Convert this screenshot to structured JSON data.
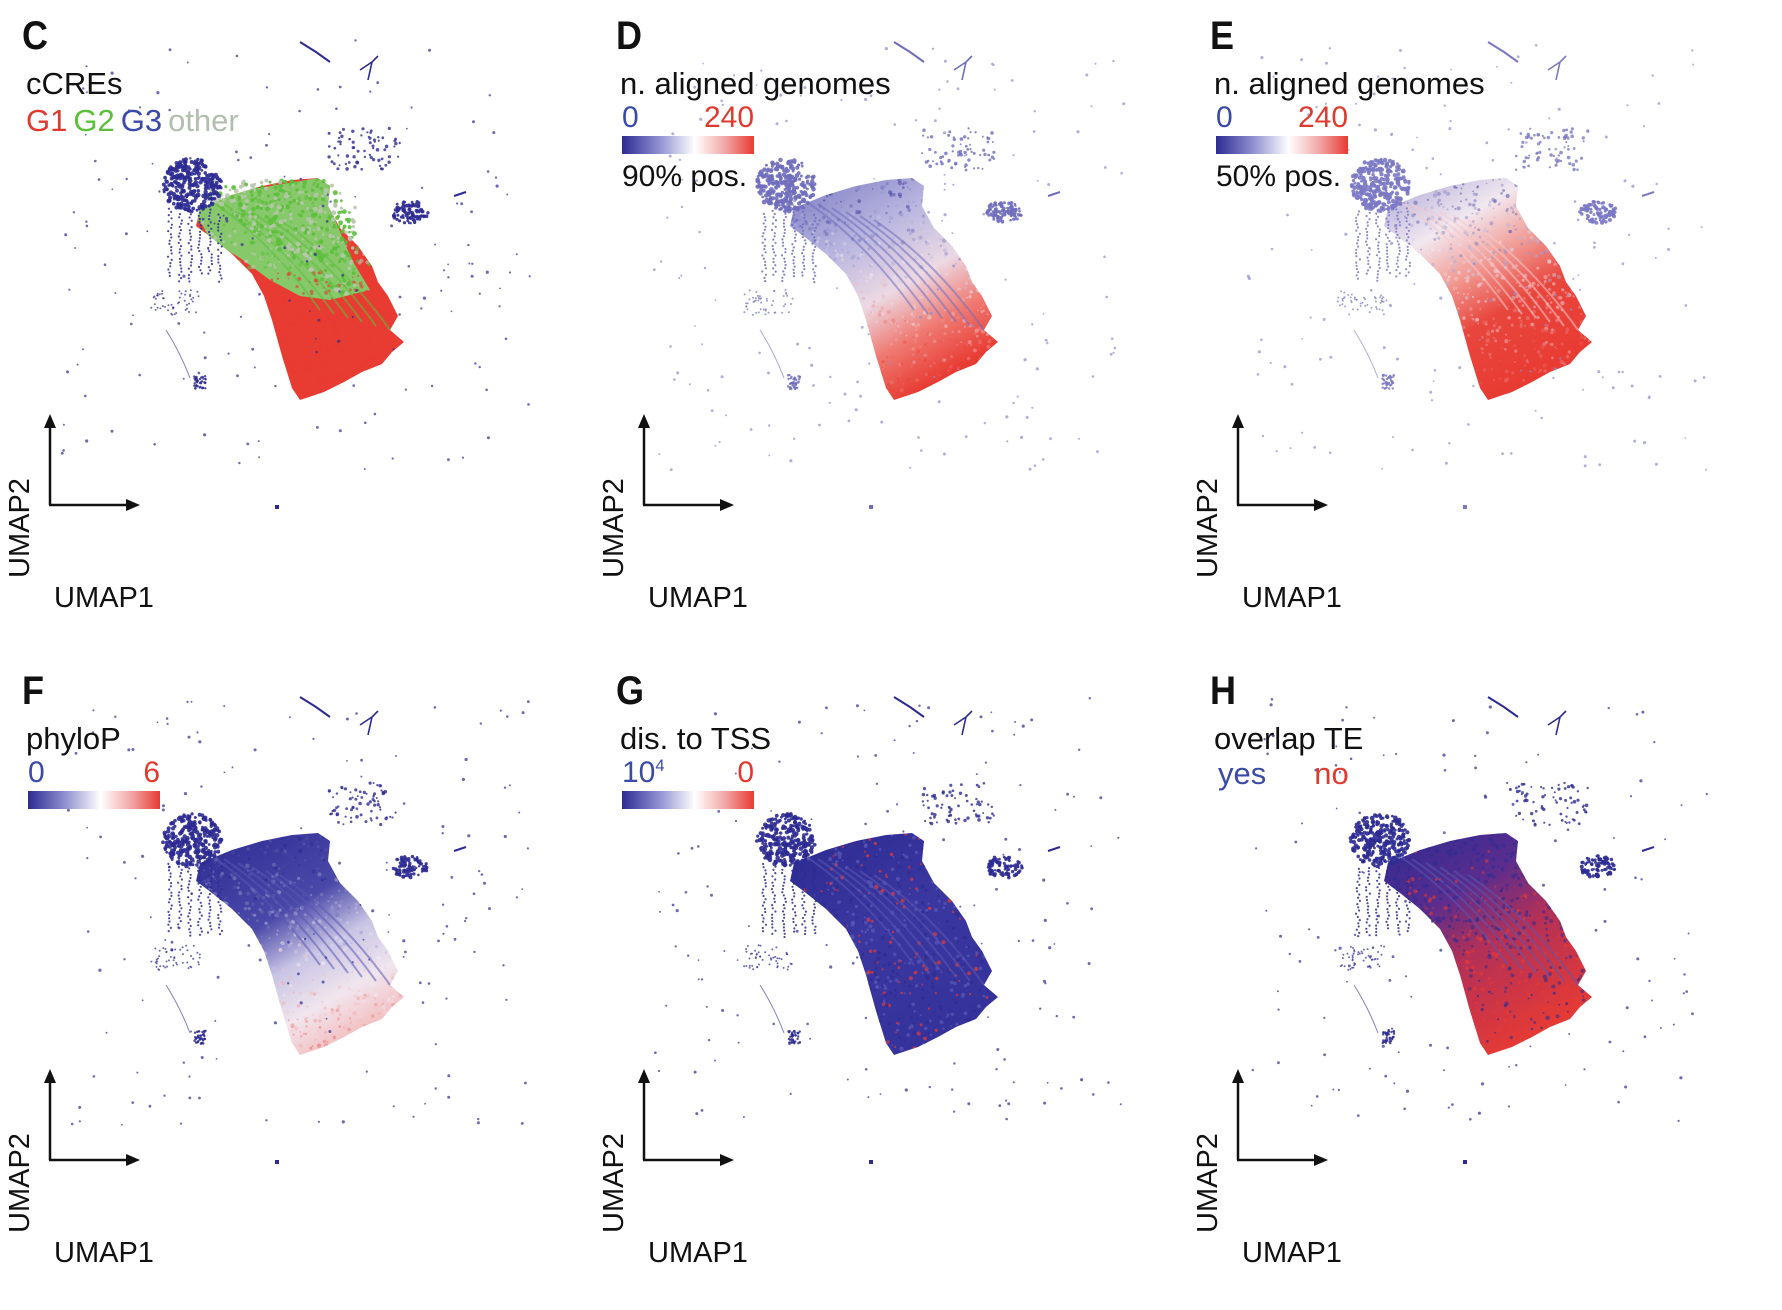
{
  "colors": {
    "blue": "#2d2b92",
    "red": "#e83b32",
    "green": "#5cbf3a",
    "gray": "#b8c2b0",
    "label_blue": "#3b4aa8",
    "label_red": "#e03a2f"
  },
  "chart_data": [
    {
      "type": "scatter",
      "panel": "C",
      "title": "cCREs",
      "legend": [
        "G1",
        "G2",
        "G3",
        "other"
      ],
      "legend_colors": [
        "#e83b32",
        "#5cbf3a",
        "#3b4aa8",
        "#b8c2b0"
      ],
      "xlabel": "UMAP1",
      "ylabel": "UMAP2",
      "coloring": "categorical"
    },
    {
      "type": "scatter",
      "panel": "D",
      "title": "n. aligned genomes",
      "colorbar": {
        "min_label": "0",
        "max_label": "240"
      },
      "note": "90% pos.",
      "xlabel": "UMAP1",
      "ylabel": "UMAP2",
      "coloring": "gradient"
    },
    {
      "type": "scatter",
      "panel": "E",
      "title": "n. aligned genomes",
      "colorbar": {
        "min_label": "0",
        "max_label": "240"
      },
      "note": "50% pos.",
      "xlabel": "UMAP1",
      "ylabel": "UMAP2",
      "coloring": "gradient"
    },
    {
      "type": "scatter",
      "panel": "F",
      "title": "phyloP",
      "colorbar": {
        "min_label": "0",
        "max_label": "6"
      },
      "xlabel": "UMAP1",
      "ylabel": "UMAP2",
      "coloring": "gradient"
    },
    {
      "type": "scatter",
      "panel": "G",
      "title": "dis. to TSS",
      "colorbar": {
        "min_label_base": "10",
        "min_label_exp": "4",
        "max_label": "0"
      },
      "xlabel": "UMAP1",
      "ylabel": "UMAP2",
      "coloring": "gradient"
    },
    {
      "type": "scatter",
      "panel": "H",
      "title": "overlap TE",
      "legend": [
        "yes",
        "no"
      ],
      "xlabel": "UMAP1",
      "ylabel": "UMAP2",
      "coloring": "binary"
    }
  ]
}
